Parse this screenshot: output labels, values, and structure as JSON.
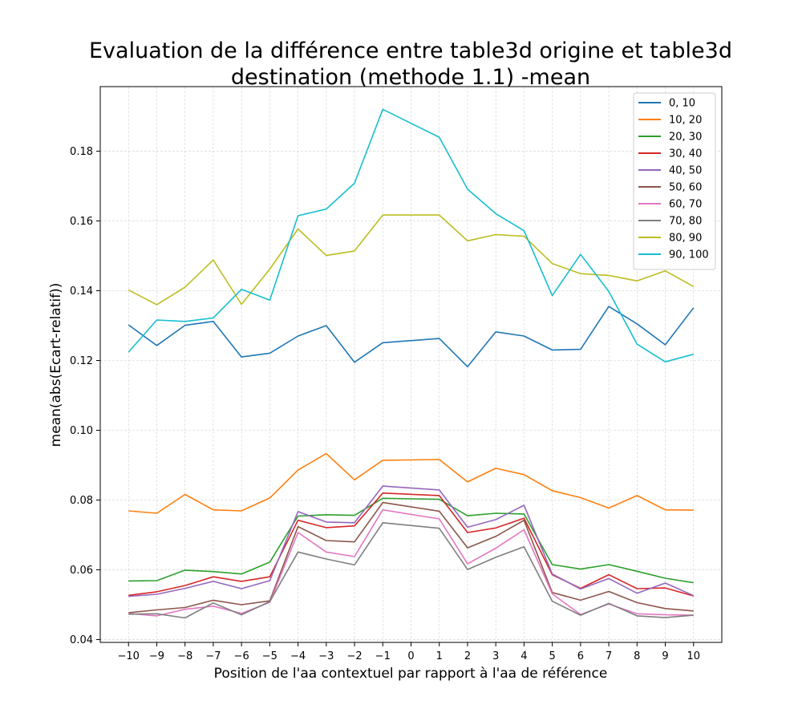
{
  "chart_data": {
    "type": "line",
    "title_lines": [
      "Evaluation de la différence entre table3d origine et table3d",
      "destination (methode 1.1) -mean"
    ],
    "xlabel": "Position de l'aa contextuel par rapport à l'aa de référence",
    "ylabel": "mean(abs(Ecart-relatif))",
    "xlim": [
      -11.0,
      11.0
    ],
    "ylim": [
      0.0392,
      0.1985
    ],
    "x_ticks": [
      -10,
      -9,
      -8,
      -7,
      -6,
      -5,
      -4,
      -3,
      -2,
      -1,
      0,
      1,
      2,
      3,
      4,
      5,
      6,
      7,
      8,
      9,
      10
    ],
    "x_tick_labels": [
      "−10",
      "−9",
      "−8",
      "−7",
      "−6",
      "−5",
      "−4",
      "−3",
      "−2",
      "−1",
      "0",
      "1",
      "2",
      "3",
      "4",
      "5",
      "6",
      "7",
      "8",
      "9",
      "10"
    ],
    "y_ticks": [
      0.04,
      0.06,
      0.08,
      0.1,
      0.12,
      0.14,
      0.16,
      0.18
    ],
    "y_tick_labels": [
      "0.04",
      "0.06",
      "0.08",
      "0.10",
      "0.12",
      "0.14",
      "0.16",
      "0.18"
    ],
    "grid": true,
    "legend_position": "top-right",
    "x": [
      -10,
      -9,
      -8,
      -7,
      -6,
      -5,
      -4,
      -3,
      -2,
      -1,
      1,
      2,
      3,
      4,
      5,
      6,
      7,
      8,
      9,
      10
    ],
    "series": [
      {
        "name": "0, 10",
        "color": "#1f77b4",
        "values": [
          0.1302,
          0.1243,
          0.1301,
          0.1312,
          0.121,
          0.1221,
          0.127,
          0.13,
          0.1195,
          0.1251,
          0.1263,
          0.1182,
          0.1282,
          0.127,
          0.123,
          0.1232,
          0.1355,
          0.1305,
          0.1245,
          0.1351
        ]
      },
      {
        "name": "10, 20",
        "color": "#ff7f0e",
        "values": [
          0.0769,
          0.0762,
          0.0816,
          0.0772,
          0.0769,
          0.0806,
          0.0886,
          0.0933,
          0.0858,
          0.0914,
          0.0916,
          0.0852,
          0.0891,
          0.0873,
          0.0827,
          0.0807,
          0.0777,
          0.0813,
          0.0772,
          0.0771
        ]
      },
      {
        "name": "20, 30",
        "color": "#2ca02c",
        "values": [
          0.0568,
          0.0569,
          0.0599,
          0.0595,
          0.0588,
          0.0622,
          0.0754,
          0.0758,
          0.0756,
          0.0805,
          0.0802,
          0.0755,
          0.0762,
          0.076,
          0.0615,
          0.0602,
          0.0615,
          0.0596,
          0.0576,
          0.0563
        ]
      },
      {
        "name": "30, 40",
        "color": "#d62728",
        "values": [
          0.0527,
          0.0537,
          0.0555,
          0.058,
          0.0567,
          0.058,
          0.0742,
          0.0721,
          0.0726,
          0.082,
          0.0813,
          0.0707,
          0.072,
          0.0748,
          0.0586,
          0.0547,
          0.0586,
          0.0546,
          0.0548,
          0.0525
        ]
      },
      {
        "name": "40, 50",
        "color": "#9467bd",
        "values": [
          0.0524,
          0.053,
          0.0547,
          0.0567,
          0.0546,
          0.0569,
          0.0767,
          0.0737,
          0.0735,
          0.084,
          0.0829,
          0.0722,
          0.0744,
          0.0785,
          0.0588,
          0.0545,
          0.0575,
          0.0533,
          0.0562,
          0.0526
        ]
      },
      {
        "name": "50, 60",
        "color": "#8c564b",
        "values": [
          0.0477,
          0.0485,
          0.0492,
          0.0513,
          0.05,
          0.0511,
          0.0724,
          0.0684,
          0.068,
          0.0793,
          0.0768,
          0.0663,
          0.0696,
          0.0742,
          0.0535,
          0.0513,
          0.0538,
          0.0506,
          0.0489,
          0.0482
        ]
      },
      {
        "name": "60, 70",
        "color": "#e377c2",
        "values": [
          0.0475,
          0.0468,
          0.0487,
          0.0496,
          0.0475,
          0.0507,
          0.0707,
          0.0651,
          0.0638,
          0.0772,
          0.0746,
          0.0617,
          0.0662,
          0.0715,
          0.0531,
          0.0472,
          0.0502,
          0.0474,
          0.0471,
          0.047
        ]
      },
      {
        "name": "70, 80",
        "color": "#7f7f7f",
        "values": [
          0.0473,
          0.0474,
          0.0462,
          0.0505,
          0.0471,
          0.0509,
          0.0651,
          0.0631,
          0.0614,
          0.0735,
          0.0719,
          0.0601,
          0.0636,
          0.0666,
          0.051,
          0.047,
          0.0504,
          0.0468,
          0.0463,
          0.047
        ]
      },
      {
        "name": "80, 90",
        "color": "#bcbd22",
        "values": [
          0.1402,
          0.136,
          0.141,
          0.1488,
          0.1361,
          0.1462,
          0.1577,
          0.1501,
          0.1514,
          0.1617,
          0.1617,
          0.1543,
          0.1561,
          0.1556,
          0.1478,
          0.1449,
          0.1444,
          0.1428,
          0.1457,
          0.1412
        ]
      },
      {
        "name": "90, 100",
        "color": "#17becf",
        "values": [
          0.1224,
          0.1316,
          0.1312,
          0.1322,
          0.1404,
          0.1373,
          0.1615,
          0.1634,
          0.1708,
          0.192,
          0.184,
          0.1691,
          0.1621,
          0.1572,
          0.1386,
          0.1504,
          0.1398,
          0.1247,
          0.1196,
          0.1218
        ]
      }
    ]
  }
}
